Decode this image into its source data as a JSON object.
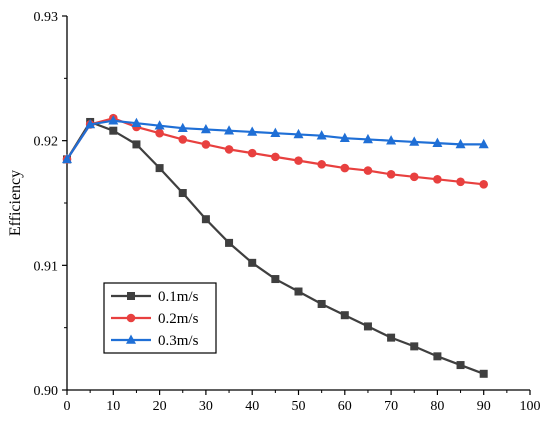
{
  "chart_data": {
    "type": "line",
    "title": "",
    "xlabel": "",
    "ylabel": "Efficiency",
    "xlim": [
      0,
      100
    ],
    "ylim": [
      0.9,
      0.93
    ],
    "xticks": [
      "0",
      "10",
      "20",
      "30",
      "40",
      "50",
      "60",
      "70",
      "80",
      "90",
      "100"
    ],
    "yticks": [
      "0.90",
      "0.91",
      "0.92",
      "0.93"
    ],
    "grid": false,
    "legend_position": "bottom-left",
    "x": [
      0,
      5,
      10,
      15,
      20,
      25,
      30,
      35,
      40,
      45,
      50,
      55,
      60,
      65,
      70,
      75,
      80,
      85,
      90
    ],
    "series": [
      {
        "name": "0.1m/s",
        "color": "#3f3f3f",
        "marker": "square",
        "values": [
          0.9185,
          0.9215,
          0.9208,
          0.9197,
          0.9178,
          0.9158,
          0.9137,
          0.9118,
          0.9102,
          0.9089,
          0.9079,
          0.9069,
          0.906,
          0.9051,
          0.9042,
          0.9035,
          0.9027,
          0.902,
          0.9013
        ]
      },
      {
        "name": "0.2m/s",
        "color": "#e8403f",
        "marker": "circle",
        "values": [
          0.9185,
          0.9213,
          0.9218,
          0.9211,
          0.9206,
          0.9201,
          0.9197,
          0.9193,
          0.919,
          0.9187,
          0.9184,
          0.9181,
          0.9178,
          0.9176,
          0.9173,
          0.9171,
          0.9169,
          0.9167,
          0.9165
        ]
      },
      {
        "name": "0.3m/s",
        "color": "#1f6fd6",
        "marker": "triangle",
        "values": [
          0.9185,
          0.9213,
          0.9216,
          0.9214,
          0.9212,
          0.921,
          0.9209,
          0.9208,
          0.9207,
          0.9206,
          0.9205,
          0.9204,
          0.9202,
          0.9201,
          0.92,
          0.9199,
          0.9198,
          0.9197,
          0.9197
        ]
      }
    ]
  }
}
